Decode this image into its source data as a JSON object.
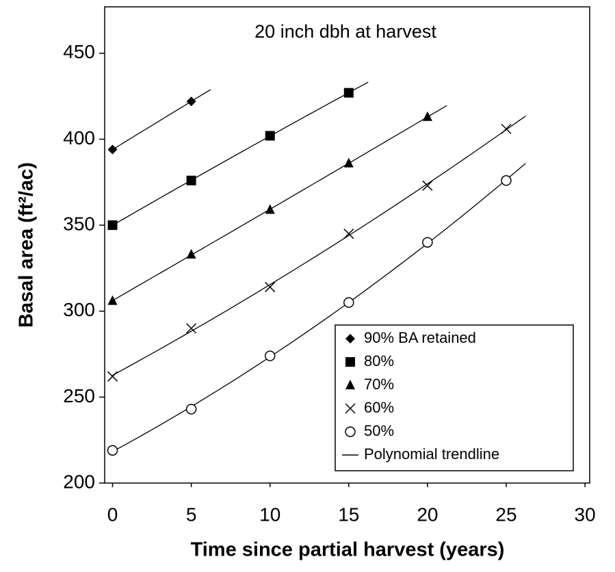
{
  "chart_data": {
    "type": "scatter",
    "annotation": "20 inch dbh at harvest",
    "x_label": "Time since partial harvest (years)",
    "y_label": "Basal area (ft²/ac)",
    "xlim": [
      -0.5,
      30.3
    ],
    "xticks": [
      0,
      5,
      10,
      15,
      20,
      25,
      30
    ],
    "ylim": [
      200,
      477
    ],
    "yticks": [
      200,
      250,
      300,
      350,
      400,
      450
    ],
    "legend": "lower right",
    "series": [
      {
        "name": "90% BA retained",
        "color": "#000000",
        "marker": "diamond",
        "x": [
          0,
          5
        ],
        "values": [
          394,
          422
        ]
      },
      {
        "name": "80%",
        "color": "#000000",
        "marker": "square",
        "x": [
          0,
          5,
          10,
          15
        ],
        "values": [
          350,
          376,
          402,
          427
        ]
      },
      {
        "name": "70%",
        "color": "#000000",
        "marker": "triangle",
        "x": [
          0,
          5,
          10,
          15,
          20
        ],
        "values": [
          306,
          333,
          359,
          386,
          413
        ]
      },
      {
        "name": "60%",
        "color": "#000000",
        "marker": "x",
        "x": [
          0,
          5,
          10,
          15,
          20,
          25
        ],
        "values": [
          262,
          290,
          314,
          345,
          373,
          406
        ]
      },
      {
        "name": "50%",
        "color": "#000000",
        "marker": "circle",
        "x": [
          0,
          5,
          10,
          15,
          20,
          25
        ],
        "values": [
          219,
          243,
          274,
          305,
          340,
          376
        ]
      }
    ],
    "trendline": {
      "name": "Polynomial trendline",
      "color": "#000000"
    }
  }
}
